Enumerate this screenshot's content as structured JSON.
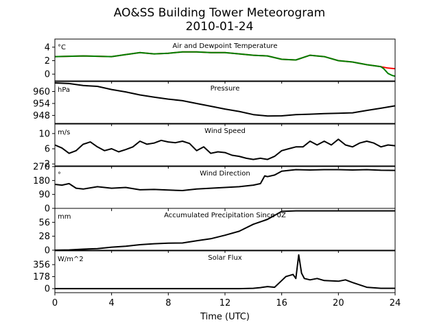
{
  "figure": {
    "title_line1": "AO&SS Building Tower Meteorogram",
    "title_line2": "2010-01-24",
    "xlabel": "Time (UTC)",
    "x_ticks": [
      "0",
      "4",
      "8",
      "12",
      "16",
      "20",
      "24"
    ]
  },
  "chart_data": [
    {
      "type": "line",
      "title": "Air and Dewpoint Temperature",
      "unit": "°C",
      "xlim": [
        0,
        24
      ],
      "ylim": [
        -1.0,
        5.2
      ],
      "yticks": [
        4,
        2,
        0
      ],
      "ytick_labels": [
        "4",
        "2",
        "0"
      ],
      "series": [
        {
          "color": "#ff0000",
          "x": [
            0,
            2,
            4,
            5,
            6,
            7,
            8,
            9,
            10,
            11,
            12,
            13,
            14,
            15,
            16,
            17,
            18,
            19,
            20,
            21,
            22,
            23,
            23.5,
            24
          ],
          "y": [
            2.6,
            2.7,
            2.6,
            2.9,
            3.2,
            3.0,
            3.1,
            3.3,
            3.3,
            3.2,
            3.2,
            3.0,
            2.8,
            2.7,
            2.2,
            2.1,
            2.8,
            2.6,
            2.0,
            1.8,
            1.4,
            1.1,
            0.9,
            0.8
          ]
        },
        {
          "color": "#008000",
          "x": [
            0,
            2,
            4,
            5,
            6,
            7,
            8,
            9,
            10,
            11,
            12,
            13,
            14,
            15,
            16,
            17,
            18,
            19,
            20,
            21,
            22,
            23,
            23.2,
            23.5,
            23.8,
            24
          ],
          "y": [
            2.6,
            2.7,
            2.6,
            2.9,
            3.2,
            3.0,
            3.1,
            3.3,
            3.3,
            3.2,
            3.2,
            3.0,
            2.8,
            2.7,
            2.2,
            2.1,
            2.8,
            2.6,
            2.0,
            1.8,
            1.4,
            1.1,
            0.8,
            0.1,
            -0.2,
            -0.3
          ]
        }
      ]
    },
    {
      "type": "line",
      "title": "Pressure",
      "unit": "hPa",
      "xlim": [
        0,
        24
      ],
      "ylim": [
        944,
        965
      ],
      "yticks": [
        960,
        954,
        948
      ],
      "ytick_labels": [
        "960",
        "954",
        "948"
      ],
      "series": [
        {
          "color": "#000000",
          "x": [
            0,
            1,
            2,
            3,
            4,
            5,
            6,
            7,
            8,
            9,
            10,
            11,
            12,
            13,
            14,
            15,
            16,
            17,
            18,
            19,
            20,
            21,
            22,
            23,
            24
          ],
          "y": [
            964.3,
            964.0,
            963.0,
            962.6,
            961.0,
            959.8,
            958.3,
            957.2,
            956.2,
            955.4,
            954.0,
            952.6,
            951.2,
            950.0,
            948.4,
            947.7,
            947.8,
            948.4,
            948.6,
            948.9,
            949.1,
            949.3,
            950.5,
            951.6,
            952.8
          ]
        }
      ]
    },
    {
      "type": "line",
      "title": "Wind Speed",
      "unit": "m/s",
      "xlim": [
        0,
        24
      ],
      "ylim": [
        1.5,
        12.5
      ],
      "yticks": [
        10,
        6,
        2
      ],
      "ytick_labels": [
        "10",
        "6",
        "2"
      ],
      "series": [
        {
          "color": "#000000",
          "x": [
            0,
            0.5,
            1,
            1.5,
            2,
            2.5,
            3,
            3.5,
            4,
            4.5,
            5,
            5.5,
            6,
            6.5,
            7,
            7.5,
            8,
            8.5,
            9,
            9.5,
            10,
            10.5,
            11,
            11.5,
            12,
            12.5,
            13,
            13.5,
            14,
            14.5,
            15,
            15.5,
            16,
            16.5,
            17,
            17.5,
            18,
            18.5,
            19,
            19.5,
            20,
            20.5,
            21,
            21.5,
            22,
            22.5,
            23,
            23.5,
            24
          ],
          "y": [
            7.0,
            6.2,
            4.8,
            5.5,
            7.2,
            7.8,
            6.5,
            5.5,
            6.0,
            5.2,
            5.8,
            6.5,
            8.0,
            7.2,
            7.5,
            8.2,
            7.8,
            7.6,
            8.0,
            7.4,
            5.5,
            6.5,
            4.8,
            5.2,
            5.0,
            4.3,
            4.0,
            3.5,
            3.2,
            3.5,
            3.2,
            4.0,
            5.5,
            6.0,
            6.5,
            6.5,
            8.0,
            7.0,
            8.0,
            7.0,
            8.5,
            7.0,
            6.5,
            7.5,
            8.0,
            7.5,
            6.5,
            7.0,
            6.8
          ]
        }
      ]
    },
    {
      "type": "line",
      "title": "Wind Direction",
      "unit": "°",
      "xlim": [
        0,
        24
      ],
      "ylim": [
        0,
        270
      ],
      "yticks": [
        270,
        180,
        90,
        0
      ],
      "ytick_labels": [
        "270",
        "180",
        "90",
        "0"
      ],
      "series": [
        {
          "color": "#000000",
          "x": [
            0,
            0.5,
            1,
            1.5,
            2,
            3,
            4,
            5,
            6,
            7,
            8,
            9,
            10,
            11,
            12,
            13,
            14,
            14.5,
            14.8,
            15,
            15.5,
            16,
            16.5,
            17,
            18,
            19,
            20,
            21,
            22,
            23,
            24
          ],
          "y": [
            155,
            150,
            160,
            130,
            125,
            140,
            130,
            135,
            120,
            122,
            118,
            115,
            125,
            130,
            135,
            140,
            150,
            160,
            210,
            205,
            215,
            240,
            245,
            250,
            248,
            250,
            250,
            248,
            250,
            246,
            245
          ]
        }
      ]
    },
    {
      "type": "line",
      "title": "Accumulated Precipitation Since 0Z",
      "unit": "mm",
      "xlim": [
        0,
        24
      ],
      "ylim": [
        0,
        84
      ],
      "yticks": [
        56,
        28,
        0
      ],
      "ytick_labels": [
        "56",
        "28",
        "0"
      ],
      "series": [
        {
          "color": "#000000",
          "x": [
            0,
            1,
            2,
            3,
            4,
            5,
            6,
            7,
            8,
            9,
            10,
            11,
            12,
            13,
            14,
            15,
            15.5,
            16,
            17,
            18,
            19,
            20,
            21,
            22,
            23,
            24
          ],
          "y": [
            0,
            0.5,
            2,
            3,
            6,
            8,
            11,
            13,
            14,
            14.5,
            19,
            23,
            30,
            38,
            52,
            62,
            70,
            78,
            79,
            79,
            79,
            79,
            79,
            79,
            79,
            79
          ]
        }
      ]
    },
    {
      "type": "line",
      "title": "Solar Flux",
      "unit": "W/m^2",
      "xlim": [
        0,
        24
      ],
      "ylim": [
        -60,
        560
      ],
      "yticks": [
        356,
        178,
        0
      ],
      "ytick_labels": [
        "356",
        "178",
        "0"
      ],
      "series": [
        {
          "color": "#000000",
          "x": [
            0,
            2,
            4,
            6,
            8,
            10,
            12,
            13,
            14,
            14.5,
            15,
            15.5,
            16,
            16.3,
            16.8,
            17,
            17.2,
            17.4,
            17.6,
            18,
            18.5,
            19,
            20,
            20.5,
            21,
            22,
            23,
            24
          ],
          "y": [
            0,
            0,
            0,
            0,
            0,
            0,
            0,
            0,
            5,
            15,
            30,
            20,
            120,
            180,
            210,
            150,
            500,
            230,
            150,
            130,
            150,
            120,
            110,
            130,
            90,
            20,
            5,
            5
          ]
        }
      ]
    }
  ]
}
